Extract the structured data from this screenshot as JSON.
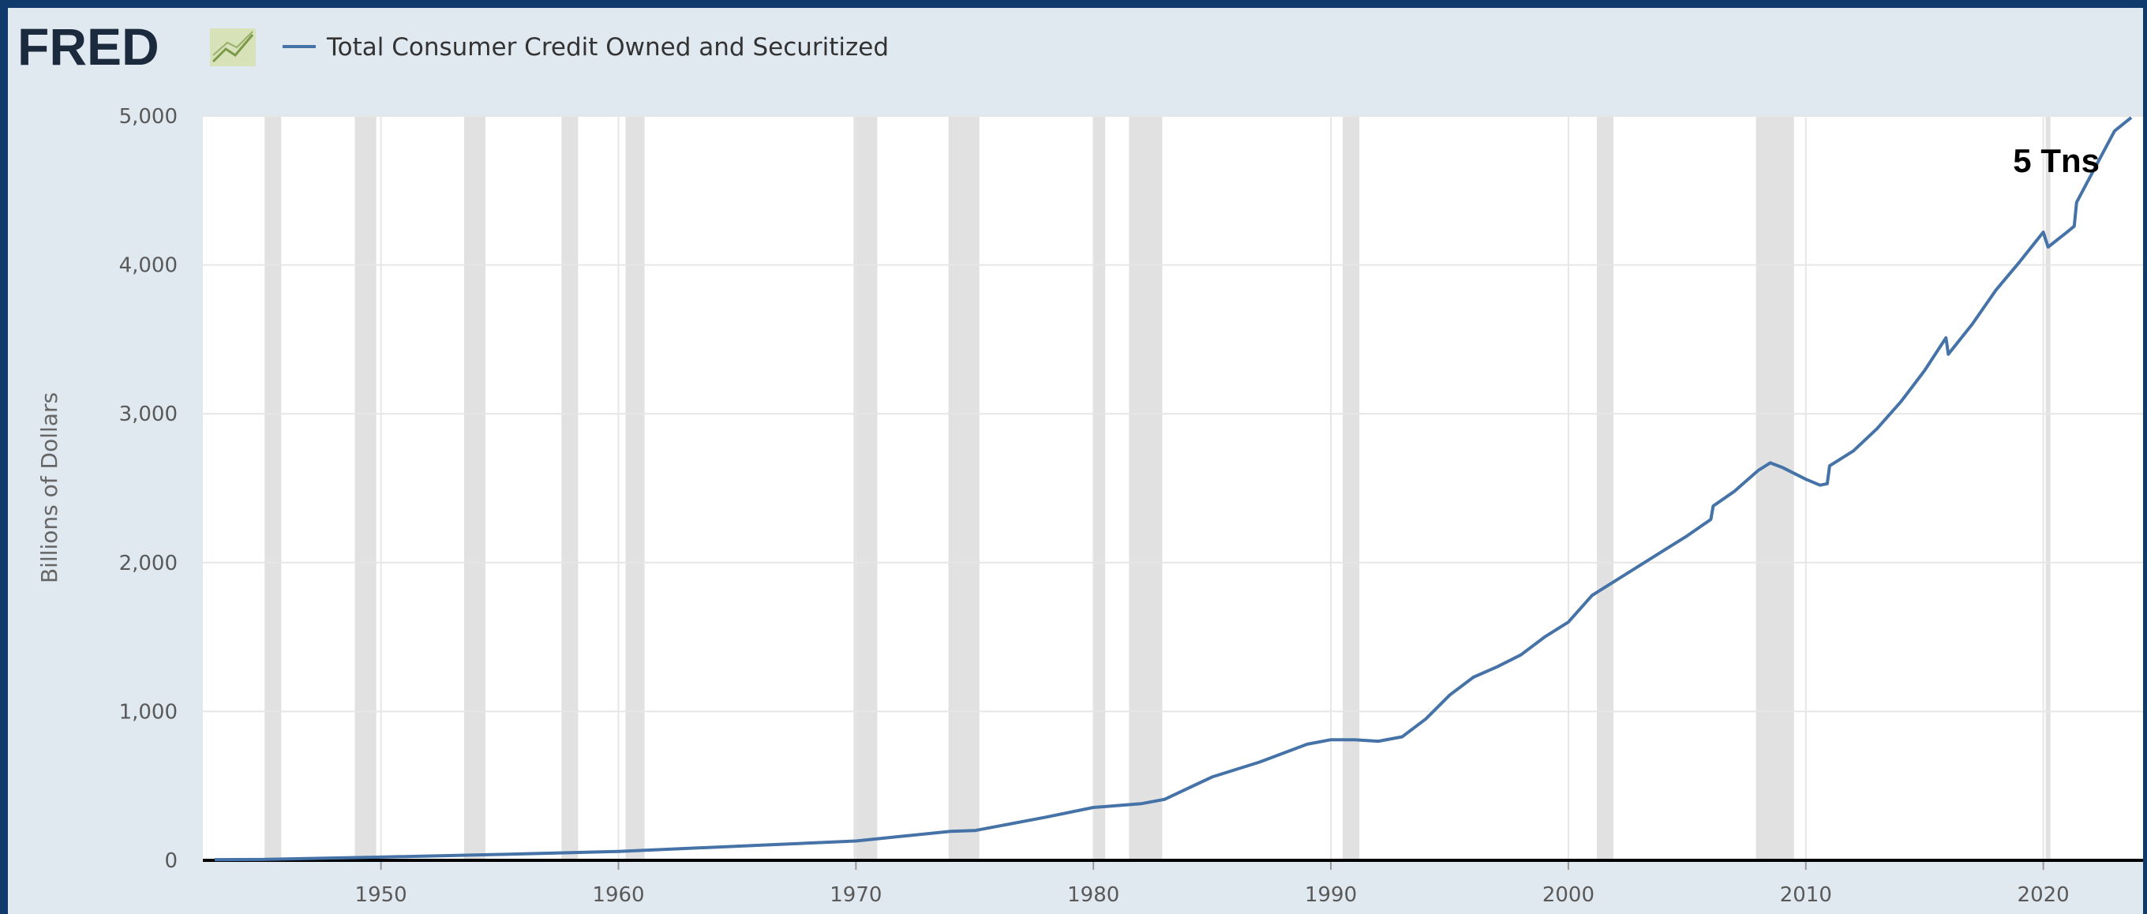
{
  "chart_data": {
    "type": "line",
    "logo": "FRED",
    "title": "Total Consumer Credit Owned and Securitized",
    "y_label": "Billions of Dollars",
    "annotation": "5 Tns",
    "xlim": [
      1942.5,
      2024.2
    ],
    "xticks": [
      1950,
      1960,
      1970,
      1980,
      1990,
      2000,
      2010,
      2020
    ],
    "ylim": [
      0,
      5000
    ],
    "yticks": [
      0,
      {
        "value": 1000,
        "label": "1,000"
      },
      {
        "value": 2000,
        "label": "2,000"
      },
      {
        "value": 3000,
        "label": "3,000"
      },
      {
        "value": 4000,
        "label": "4,000"
      },
      {
        "value": 5000,
        "label": "5,000"
      }
    ],
    "grid": true,
    "recession_color": "#e1e1e1",
    "recessions": [
      [
        1945.1,
        1945.8
      ],
      [
        1948.9,
        1949.8
      ],
      [
        1953.5,
        1954.4
      ],
      [
        1957.6,
        1958.3
      ],
      [
        1960.3,
        1961.1
      ],
      [
        1969.9,
        1970.9
      ],
      [
        1973.9,
        1975.2
      ],
      [
        1980.0,
        1980.5
      ],
      [
        1981.5,
        1982.9
      ],
      [
        1990.5,
        1991.2
      ],
      [
        2001.2,
        2001.9
      ],
      [
        2007.9,
        2009.5
      ],
      [
        2020.1,
        2020.3
      ]
    ],
    "series": [
      {
        "name": "Total Consumer Credit Owned and Securitized",
        "color": "#4572a7",
        "x": [
          1943,
          1945,
          1950,
          1955,
          1960,
          1965,
          1970,
          1974,
          1975,
          1978,
          1980,
          1982,
          1983,
          1985,
          1987,
          1989,
          1990,
          1991,
          1992,
          1993,
          1994,
          1995,
          1996,
          1997,
          1998,
          1999,
          2000,
          2001,
          2002,
          2003,
          2004,
          2005,
          2006,
          2006.1,
          2007,
          2008,
          2008.5,
          2009,
          2010,
          2010.6,
          2010.9,
          2011,
          2012,
          2013,
          2014,
          2015,
          2015.9,
          2016,
          2017,
          2018,
          2019,
          2020.0,
          2020.2,
          2021,
          2021.3,
          2021.4,
          2022,
          2023,
          2023.7
        ],
        "values": [
          5,
          6,
          22,
          40,
          60,
          95,
          130,
          195,
          200,
          290,
          355,
          380,
          410,
          560,
          660,
          780,
          810,
          810,
          800,
          830,
          950,
          1110,
          1230,
          1300,
          1380,
          1500,
          1600,
          1780,
          1880,
          1980,
          2080,
          2180,
          2290,
          2380,
          2480,
          2620,
          2670,
          2640,
          2560,
          2520,
          2530,
          2650,
          2750,
          2900,
          3080,
          3290,
          3510,
          3400,
          3600,
          3830,
          4020,
          4220,
          4120,
          4220,
          4260,
          4420,
          4600,
          4900,
          4990
        ]
      }
    ]
  }
}
